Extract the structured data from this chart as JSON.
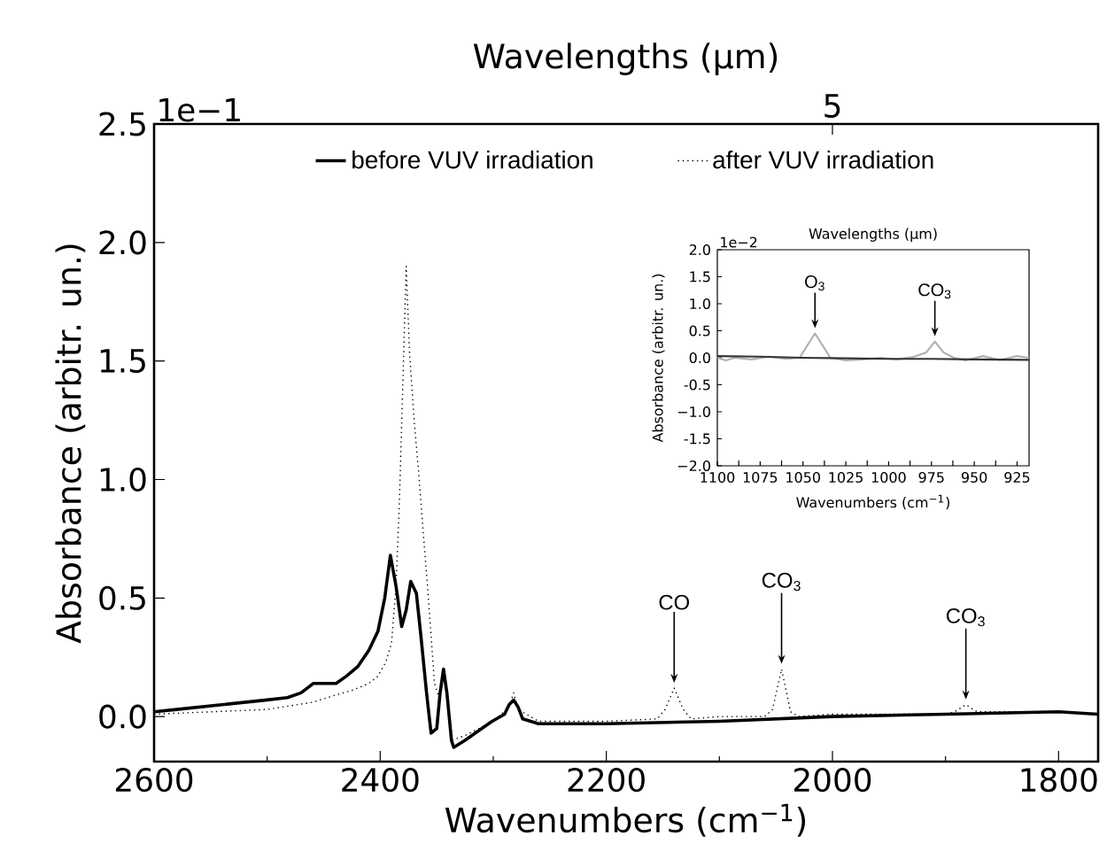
{
  "chart_data": [
    {
      "type": "line",
      "xlabel": "Wavenumbers (cm$^{−1}$)",
      "ylabel": "Absorbance (arbitr. un.)",
      "x2label": "Wavelengths (µm)",
      "xlim": [
        2600,
        1765
      ],
      "xticks": [
        2600,
        2400,
        2200,
        2000,
        1800
      ],
      "ylim": [
        -0.19,
        2.5
      ],
      "yticks": [
        {
          "value": 0,
          "label": "0.0"
        },
        0.5,
        {
          "value": 1,
          "label": "1.0"
        },
        1.5,
        {
          "value": 2,
          "label": "2.0"
        },
        2.5
      ],
      "legend": "top",
      "grid": false,
      "series": [
        {
          "name": "before VUV irradiation",
          "color": "#000000",
          "line_style": "solid",
          "x": [
            2600,
            2580,
            2540,
            2500,
            2482,
            2470,
            2459,
            2439,
            2430,
            2420,
            2410,
            2402,
            2396,
            2391,
            2386,
            2381,
            2377,
            2373,
            2368,
            2364,
            2359,
            2355,
            2350,
            2347,
            2344,
            2341,
            2337,
            2335,
            2325,
            2310,
            2301,
            2290,
            2286,
            2282,
            2278,
            2274,
            2260,
            2200,
            2100,
            2000,
            1900,
            1800,
            1765
          ],
          "values": [
            0.02,
            0.03,
            0.05,
            0.07,
            0.08,
            0.1,
            0.14,
            0.14,
            0.17,
            0.21,
            0.28,
            0.36,
            0.5,
            0.68,
            0.55,
            0.38,
            0.45,
            0.57,
            0.52,
            0.34,
            0.1,
            -0.07,
            -0.05,
            0.1,
            0.2,
            0.1,
            -0.1,
            -0.13,
            -0.1,
            -0.05,
            -0.02,
            0.01,
            0.05,
            0.07,
            0.04,
            -0.01,
            -0.03,
            -0.03,
            -0.02,
            0.0,
            0.01,
            0.02,
            0.01
          ]
        },
        {
          "name": "after VUV irradiation",
          "color": "#000000",
          "line_style": "dotted",
          "x": [
            2600,
            2550,
            2500,
            2460,
            2440,
            2425,
            2410,
            2402,
            2395,
            2390,
            2386,
            2383,
            2380,
            2377,
            2374,
            2370,
            2366,
            2362,
            2358,
            2352,
            2348,
            2344,
            2340,
            2336,
            2325,
            2300,
            2286,
            2282,
            2278,
            2260,
            2200,
            2155,
            2148,
            2140,
            2132,
            2125,
            2100,
            2060,
            2053,
            2045,
            2037,
            2030,
            2000,
            1900,
            1892,
            1882,
            1872,
            1860,
            1800,
            1765
          ],
          "values": [
            0.01,
            0.02,
            0.03,
            0.06,
            0.09,
            0.11,
            0.14,
            0.17,
            0.23,
            0.31,
            0.55,
            0.91,
            1.4,
            1.9,
            1.53,
            1.25,
            1.03,
            0.78,
            0.54,
            0.14,
            0.08,
            0.18,
            0.05,
            -0.1,
            -0.08,
            -0.02,
            0.04,
            0.1,
            0.03,
            -0.02,
            -0.02,
            -0.01,
            0.03,
            0.12,
            0.03,
            -0.01,
            0.0,
            0.0,
            0.03,
            0.2,
            0.02,
            0.0,
            0.01,
            0.01,
            0.02,
            0.05,
            0.02,
            0.02,
            0.02,
            0.01
          ]
        }
      ],
      "annotations": [
        {
          "text": "CO",
          "x": 2140,
          "y": 0.12
        },
        {
          "text": "CO$_{3}$",
          "x": 2045,
          "y": 0.2
        },
        {
          "text": "CO$_{3}$",
          "x": 1882,
          "y": 0.05
        },
        {
          "text": "5",
          "x": 2000
        },
        "1e−1"
      ]
    },
    {
      "type": "line",
      "xlabel": "Wavenumbers (cm$^{−1}$)",
      "ylabel": "Absorbance (arbitr. un.)",
      "x2label": "Wavelengths (µm)",
      "xlim": [
        1100,
        918
      ],
      "xticks": [
        1100,
        1075,
        1050,
        1025,
        1000,
        975,
        950,
        925
      ],
      "ylim": [
        -2.0,
        2.0
      ],
      "yticks": [
        {
          "value": -2,
          "label": "−2.0"
        },
        -1.5,
        {
          "value": -1,
          "label": "−1.0"
        },
        -0.5,
        {
          "value": 0,
          "label": "0.0"
        },
        0.5,
        {
          "value": 1,
          "label": "1.0"
        },
        1.5,
        {
          "value": 2,
          "label": "2.0"
        }
      ],
      "grid": false,
      "series": [
        {
          "color": "#b0b0b0",
          "line_style": "solid",
          "x": [
            1100,
            1095,
            1090,
            1080,
            1070,
            1060,
            1052,
            1048,
            1043,
            1038,
            1034,
            1025,
            1015,
            1005,
            995,
            985,
            978,
            973,
            968,
            962,
            955,
            945,
            935,
            925,
            918
          ],
          "values": [
            0.0,
            -0.05,
            0.0,
            -0.03,
            0.02,
            -0.02,
            0.0,
            0.2,
            0.45,
            0.2,
            0.0,
            -0.05,
            -0.03,
            0.0,
            -0.03,
            0.02,
            0.1,
            0.3,
            0.1,
            0.0,
            -0.05,
            0.03,
            -0.04,
            0.03,
            0.0
          ]
        },
        {
          "color": "#333333",
          "line_style": "solid",
          "x": [
            1100,
            1075,
            1050,
            1025,
            1000,
            975,
            950,
            918
          ],
          "values": [
            0.03,
            0.02,
            0.0,
            -0.01,
            -0.02,
            -0.02,
            -0.03,
            -0.04
          ]
        }
      ],
      "annotations": [
        {
          "text": "O$_{3}$",
          "x": 1043,
          "y": 0.45
        },
        {
          "text": "CO$_{3}$",
          "x": 973,
          "y": 0.3
        },
        "1e−2"
      ]
    }
  ]
}
